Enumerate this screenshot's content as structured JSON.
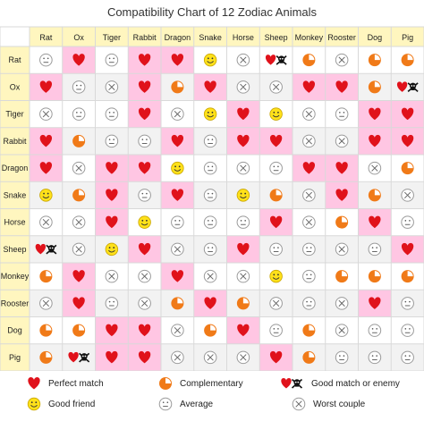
{
  "chart_data": {
    "type": "table",
    "title": "Compatibility Chart of 12 Zodiac Animals",
    "animals": [
      "Rat",
      "Ox",
      "Tiger",
      "Rabbit",
      "Dragon",
      "Snake",
      "Horse",
      "Sheep",
      "Monkey",
      "Rooster",
      "Dog",
      "Pig"
    ],
    "matrix": [
      [
        "A",
        "H",
        "A",
        "H",
        "H",
        "F",
        "W",
        "E",
        "C",
        "W",
        "C",
        "C"
      ],
      [
        "H",
        "A",
        "W",
        "H",
        "C",
        "H",
        "W",
        "W",
        "H",
        "H",
        "C",
        "E"
      ],
      [
        "W",
        "A",
        "A",
        "H",
        "W",
        "F",
        "H",
        "F",
        "W",
        "A",
        "H",
        "H"
      ],
      [
        "H",
        "C",
        "A",
        "A",
        "H",
        "A",
        "H",
        "H",
        "W",
        "W",
        "H",
        "H"
      ],
      [
        "H",
        "W",
        "H",
        "H",
        "F",
        "A",
        "W",
        "A",
        "H",
        "H",
        "W",
        "C"
      ],
      [
        "F",
        "C",
        "H",
        "A",
        "H",
        "A",
        "F",
        "C",
        "W",
        "H",
        "C",
        "W"
      ],
      [
        "W",
        "W",
        "H",
        "F",
        "A",
        "A",
        "A",
        "H",
        "W",
        "C",
        "H",
        "A"
      ],
      [
        "E",
        "W",
        "F",
        "H",
        "W",
        "A",
        "H",
        "A",
        "A",
        "W",
        "A",
        "H"
      ],
      [
        "C",
        "H",
        "W",
        "W",
        "H",
        "W",
        "W",
        "F",
        "A",
        "C",
        "C",
        "C"
      ],
      [
        "W",
        "H",
        "A",
        "W",
        "C",
        "H",
        "C",
        "W",
        "A",
        "W",
        "H",
        "A"
      ],
      [
        "C",
        "C",
        "H",
        "H",
        "W",
        "C",
        "H",
        "A",
        "C",
        "W",
        "A",
        "A"
      ],
      [
        "C",
        "E",
        "H",
        "H",
        "W",
        "W",
        "W",
        "H",
        "C",
        "A",
        "A",
        "A"
      ]
    ],
    "legend": [
      {
        "code": "H",
        "label": "Perfect match"
      },
      {
        "code": "C",
        "label": "Complementary"
      },
      {
        "code": "E",
        "label": "Good match or enemy"
      },
      {
        "code": "F",
        "label": "Good friend"
      },
      {
        "code": "A",
        "label": "Average"
      },
      {
        "code": "W",
        "label": "Worst couple"
      }
    ]
  },
  "colors": {
    "header_bg": "#fff6bf",
    "row_odd": "#ffffff",
    "row_even": "#f2f2f2",
    "pink": "#ffc6e3",
    "grid_line": "#d9d9d9",
    "heart": "#e0121b",
    "complementary": "#f07a18",
    "friend": "#ffe11a",
    "icon_gray": "#9a9a9a",
    "skull": "#111111"
  },
  "icons": {
    "H": "heart-icon",
    "C": "pie-chart-icon",
    "E": "heart-skull-icon",
    "F": "smiley-face-icon",
    "A": "neutral-face-icon",
    "W": "cross-circle-icon"
  }
}
